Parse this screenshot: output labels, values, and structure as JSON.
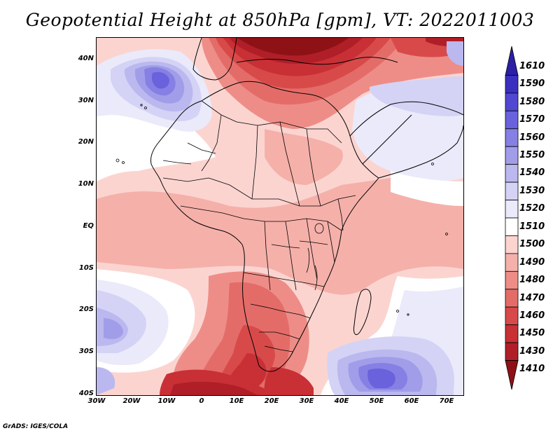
{
  "title": "Geopotential Height at 850hPa [gpm], VT: 2022011003",
  "footer": "GrADS: IGES/COLA",
  "lat_labels": [
    "40N",
    "30N",
    "20N",
    "10N",
    "EQ",
    "10S",
    "20S",
    "30S",
    "40S"
  ],
  "lon_labels": [
    "30W",
    "20W",
    "10W",
    "0",
    "10E",
    "20E",
    "30E",
    "40E",
    "50E",
    "60E",
    "70E"
  ],
  "colorbar": {
    "levels": [
      "1610",
      "1590",
      "1580",
      "1570",
      "1560",
      "1550",
      "1540",
      "1530",
      "1520",
      "1510",
      "1500",
      "1490",
      "1480",
      "1470",
      "1460",
      "1450",
      "1430",
      "1410"
    ],
    "colors": [
      "#2a1fa6",
      "#3a30c0",
      "#5048d2",
      "#6a62dc",
      "#8680e4",
      "#a29de9",
      "#bbb8ef",
      "#d4d3f5",
      "#eaeafb",
      "#ffffff",
      "#fbd4d0",
      "#f5b0aa",
      "#ee8d87",
      "#e46c68",
      "#d84a4a",
      "#c83036",
      "#b01f28",
      "#8e1116"
    ]
  },
  "map_colors": {
    "background": "#fbd4d0",
    "land_line": "#000000"
  }
}
